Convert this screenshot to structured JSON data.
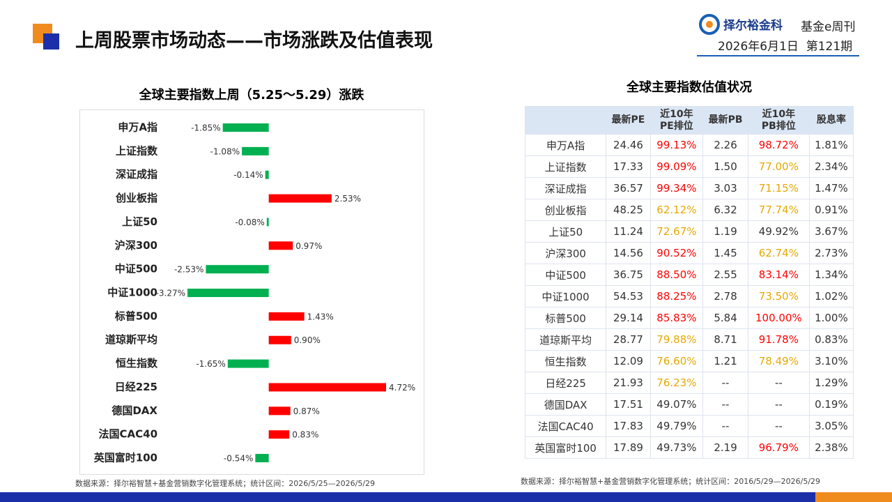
{
  "header": {
    "title": "上周股票市场动态——市场涨跌及估值表现",
    "brand": "择尔裕金科",
    "publication": "基金e周刊",
    "issue": "2026年6月1日  第121期"
  },
  "chart_data": {
    "type": "hbar",
    "title": "全球主要指数上周（5.25～5.29）涨跌",
    "categories": [
      "申万A指",
      "上证指数",
      "深证成指",
      "创业板指",
      "上证50",
      "沪深300",
      "中证500",
      "中证1000",
      "标普500",
      "道琼斯平均",
      "恒生指数",
      "日经225",
      "德国DAX",
      "法国CAC40",
      "英国富时100"
    ],
    "values": [
      -1.85,
      -1.08,
      -0.14,
      2.53,
      -0.08,
      0.97,
      -2.53,
      -3.27,
      1.43,
      0.9,
      -1.65,
      4.72,
      0.87,
      0.83,
      -0.54
    ],
    "value_labels": [
      "-1.85%",
      "-1.08%",
      "-0.14%",
      "2.53%",
      "-0.08%",
      "0.97%",
      "-2.53%",
      "-3.27%",
      "1.43%",
      "0.90%",
      "-1.65%",
      "4.72%",
      "0.87%",
      "0.83%",
      "-0.54%"
    ],
    "positive_color": "#ff0000",
    "negative_color": "#00b050",
    "footnote": "数据来源：择尔裕智慧+基金营销数字化管理系统；统计区间：2026/5/25—2026/5/29"
  },
  "table": {
    "title": "全球主要指数估值状况",
    "header": [
      "最新PE",
      "近10年\nPE排位",
      "最新PB",
      "近10年\nPB排位",
      "股息率"
    ],
    "rows": [
      [
        "申万A指",
        "24.46",
        "99.13%",
        "2.26",
        "98.72%",
        "1.81%"
      ],
      [
        "上证指数",
        "17.33",
        "99.09%",
        "1.50",
        "77.00%",
        "2.34%"
      ],
      [
        "深证成指",
        "36.57",
        "99.34%",
        "3.03",
        "71.15%",
        "1.47%"
      ],
      [
        "创业板指",
        "48.25",
        "62.12%",
        "6.32",
        "77.74%",
        "0.91%"
      ],
      [
        "上证50",
        "11.24",
        "72.67%",
        "1.19",
        "49.92%",
        "3.67%"
      ],
      [
        "沪深300",
        "14.56",
        "90.52%",
        "1.45",
        "62.74%",
        "2.73%"
      ],
      [
        "中证500",
        "36.75",
        "88.50%",
        "2.55",
        "83.14%",
        "1.34%"
      ],
      [
        "中证1000",
        "54.53",
        "88.25%",
        "2.78",
        "73.50%",
        "1.02%"
      ],
      [
        "标普500",
        "29.14",
        "85.83%",
        "5.84",
        "100.00%",
        "1.00%"
      ],
      [
        "道琼斯平均",
        "28.77",
        "79.88%",
        "8.71",
        "91.78%",
        "0.83%"
      ],
      [
        "恒生指数",
        "12.09",
        "76.60%",
        "1.21",
        "78.49%",
        "3.10%"
      ],
      [
        "日经225",
        "21.93",
        "76.23%",
        "--",
        "--",
        "1.29%"
      ],
      [
        "德国DAX",
        "17.51",
        "49.07%",
        "--",
        "--",
        "0.19%"
      ],
      [
        "法国CAC40",
        "17.83",
        "49.79%",
        "--",
        "--",
        "3.05%"
      ],
      [
        "英国富时100",
        "17.89",
        "49.73%",
        "2.19",
        "96.79%",
        "2.38%"
      ]
    ],
    "high_color": "#ff0000",
    "mid_color": "#e6a800",
    "footnote": "数据来源：择尔裕智慧+基金营销数字化管理系统；统计区间：2016/5/29—2026/5/29"
  }
}
